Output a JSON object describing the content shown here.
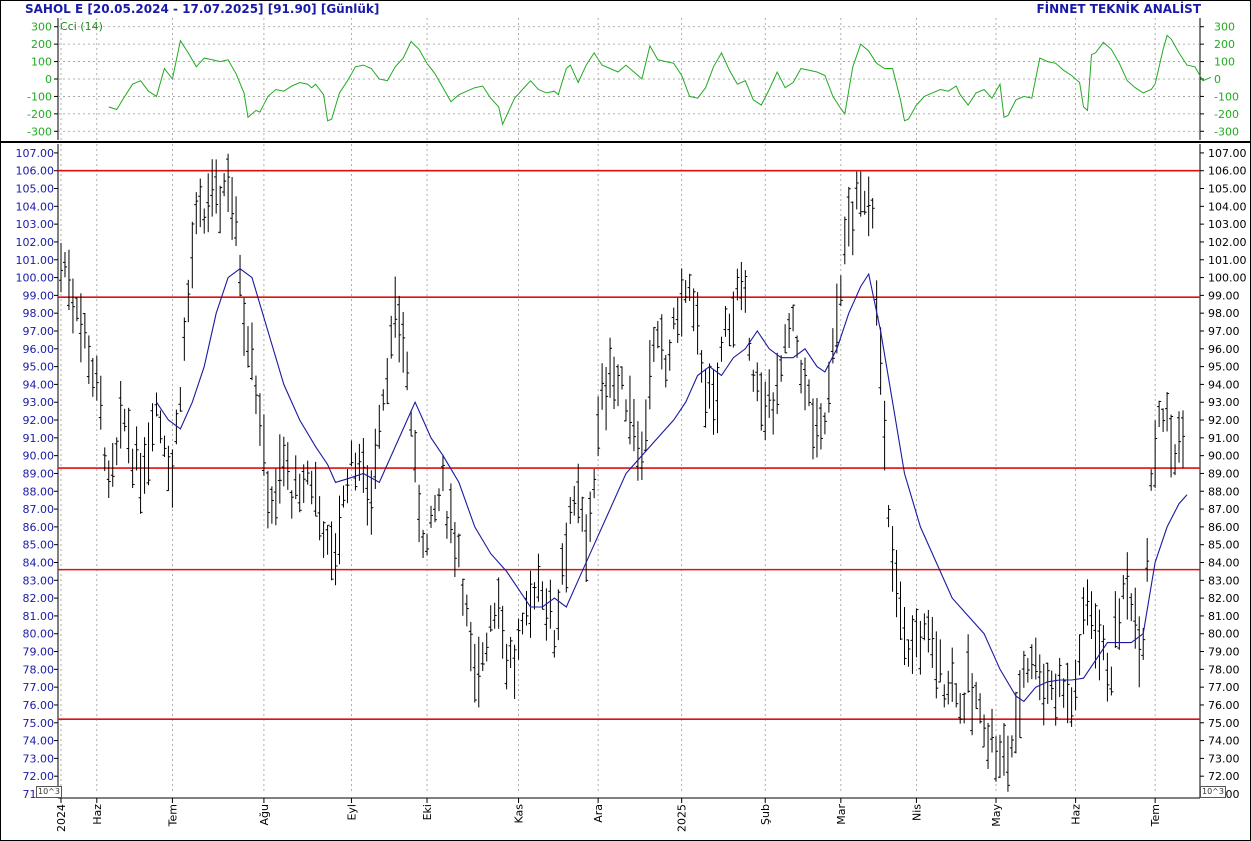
{
  "header": {
    "symbol": "SAHOL E",
    "range": "[20.05.2024 - 17.07.2025]",
    "last": "[91.90]",
    "period": "[Günlük]",
    "brand": "FİNNET TEKNİK ANALİST"
  },
  "exponent_label": "10^3",
  "colors": {
    "price": "#000000",
    "ma": "#1a1aa0",
    "hlines": "#dd1111",
    "cci": "#22aa22",
    "axis_text": "#1a1aa8",
    "grid": "#9a9a9a"
  },
  "cci_panel": {
    "label": "Cci (14)",
    "ylim": [
      -350,
      350
    ],
    "ticks": [
      300,
      200,
      100,
      0,
      -100,
      -200,
      -300
    ],
    "tick_labels": [
      "300",
      "200",
      "100",
      "0",
      "-100",
      "-200",
      "-300"
    ]
  },
  "chart_data": {
    "type": "line",
    "title": "SAHOL E",
    "xlabel": "",
    "ylabel": "",
    "ylim": [
      71,
      107.5
    ],
    "x_range": [
      0,
      282
    ],
    "y_ticks": [
      107,
      106,
      105,
      104,
      103,
      102,
      101,
      100,
      99,
      98,
      97,
      96,
      95,
      94,
      93,
      92,
      91,
      90,
      89,
      88,
      87,
      86,
      85,
      84,
      83,
      82,
      81,
      80,
      79,
      78,
      77,
      76,
      75,
      74,
      73,
      72,
      71
    ],
    "y_tick_labels": [
      "107.00",
      "106.00",
      "105.00",
      "104.00",
      "103.00",
      "102.00",
      "101.00",
      "100.00",
      "99.00",
      "98.00",
      "97.00",
      "96.00",
      "95.00",
      "94.00",
      "93.00",
      "92.00",
      "91.00",
      "90.00",
      "89.00",
      "88.00",
      "87.00",
      "86.00",
      "85.00",
      "84.00",
      "83.00",
      "82.00",
      "81.00",
      "80.00",
      "79.00",
      "78.00",
      "77.00",
      "76.00",
      "75.00",
      "74.00",
      "73.00",
      "72.00",
      "71.00"
    ],
    "x_ticks": [
      {
        "label": "2024",
        "x": 0
      },
      {
        "label": "Haz",
        "x": 9
      },
      {
        "label": "Tem",
        "x": 28
      },
      {
        "label": "Ağu",
        "x": 51
      },
      {
        "label": "Eyl",
        "x": 73
      },
      {
        "label": "Eki",
        "x": 92
      },
      {
        "label": "Kas",
        "x": 115
      },
      {
        "label": "Ara",
        "x": 135
      },
      {
        "label": "2025",
        "x": 156
      },
      {
        "label": "Şub",
        "x": 177
      },
      {
        "label": "Mar",
        "x": 196
      },
      {
        "label": "Nis",
        "x": 215
      },
      {
        "label": "May",
        "x": 235
      },
      {
        "label": "Haz",
        "x": 255
      },
      {
        "label": "Tem",
        "x": 275
      }
    ],
    "hlines": [
      106.0,
      98.9,
      89.3,
      83.6,
      75.2
    ],
    "price_anchors": [
      [
        0,
        101
      ],
      [
        2,
        100
      ],
      [
        4,
        98.5
      ],
      [
        6,
        97
      ],
      [
        8,
        95
      ],
      [
        10,
        93
      ],
      [
        12,
        88
      ],
      [
        14,
        90
      ],
      [
        16,
        92
      ],
      [
        18,
        90
      ],
      [
        20,
        88.5
      ],
      [
        22,
        91
      ],
      [
        24,
        93
      ],
      [
        26,
        91
      ],
      [
        28,
        89
      ],
      [
        30,
        94
      ],
      [
        32,
        99
      ],
      [
        34,
        103
      ],
      [
        36,
        103
      ],
      [
        38,
        105
      ],
      [
        40,
        104.5
      ],
      [
        42,
        106
      ],
      [
        44,
        103
      ],
      [
        46,
        98
      ],
      [
        48,
        96
      ],
      [
        50,
        92
      ],
      [
        52,
        88
      ],
      [
        54,
        87.5
      ],
      [
        56,
        90
      ],
      [
        58,
        88
      ],
      [
        60,
        87.5
      ],
      [
        62,
        89
      ],
      [
        64,
        88
      ],
      [
        66,
        86
      ],
      [
        68,
        84
      ],
      [
        70,
        86
      ],
      [
        72,
        89
      ],
      [
        74,
        90
      ],
      [
        76,
        89
      ],
      [
        78,
        88
      ],
      [
        80,
        92
      ],
      [
        82,
        95
      ],
      [
        84,
        97
      ],
      [
        86,
        97
      ],
      [
        88,
        92
      ],
      [
        90,
        87
      ],
      [
        92,
        85
      ],
      [
        94,
        87
      ],
      [
        96,
        88
      ],
      [
        98,
        86
      ],
      [
        100,
        85
      ],
      [
        102,
        81
      ],
      [
        104,
        77
      ],
      [
        106,
        79
      ],
      [
        108,
        81
      ],
      [
        110,
        82
      ],
      [
        112,
        79
      ],
      [
        114,
        78
      ],
      [
        116,
        80
      ],
      [
        118,
        82
      ],
      [
        120,
        83
      ],
      [
        122,
        82
      ],
      [
        124,
        80
      ],
      [
        126,
        84
      ],
      [
        128,
        87
      ],
      [
        130,
        87
      ],
      [
        132,
        85
      ],
      [
        134,
        89
      ],
      [
        136,
        93
      ],
      [
        138,
        95
      ],
      [
        140,
        94
      ],
      [
        142,
        93
      ],
      [
        144,
        92
      ],
      [
        146,
        90
      ],
      [
        148,
        95
      ],
      [
        150,
        96
      ],
      [
        152,
        95
      ],
      [
        154,
        97
      ],
      [
        156,
        99
      ],
      [
        158,
        99
      ],
      [
        160,
        97
      ],
      [
        162,
        94
      ],
      [
        164,
        92
      ],
      [
        166,
        96
      ],
      [
        168,
        98
      ],
      [
        170,
        99
      ],
      [
        172,
        98
      ],
      [
        174,
        95
      ],
      [
        176,
        92
      ],
      [
        178,
        93
      ],
      [
        180,
        94
      ],
      [
        182,
        96
      ],
      [
        184,
        97
      ],
      [
        186,
        95
      ],
      [
        188,
        93
      ],
      [
        190,
        91
      ],
      [
        192,
        92
      ],
      [
        194,
        96
      ],
      [
        196,
        100
      ],
      [
        198,
        103
      ],
      [
        200,
        104
      ],
      [
        202,
        104.5
      ],
      [
        204,
        104
      ],
      [
        206,
        95
      ],
      [
        208,
        86
      ],
      [
        210,
        83
      ],
      [
        212,
        80
      ],
      [
        214,
        79
      ],
      [
        216,
        80
      ],
      [
        218,
        80
      ],
      [
        220,
        79
      ],
      [
        222,
        77
      ],
      [
        224,
        78
      ],
      [
        226,
        76
      ],
      [
        228,
        77
      ],
      [
        230,
        76
      ],
      [
        232,
        75
      ],
      [
        234,
        74
      ],
      [
        236,
        73
      ],
      [
        238,
        73
      ],
      [
        240,
        75
      ],
      [
        242,
        78
      ],
      [
        244,
        79
      ],
      [
        246,
        78
      ],
      [
        248,
        77
      ],
      [
        250,
        77
      ],
      [
        252,
        77.5
      ],
      [
        254,
        76
      ],
      [
        256,
        79
      ],
      [
        258,
        82
      ],
      [
        260,
        81
      ],
      [
        262,
        79
      ],
      [
        264,
        78
      ],
      [
        266,
        81
      ],
      [
        268,
        83
      ],
      [
        270,
        81
      ],
      [
        272,
        80
      ],
      [
        274,
        89
      ],
      [
        276,
        93
      ],
      [
        278,
        92
      ],
      [
        280,
        90
      ],
      [
        282,
        91
      ]
    ],
    "ma_points": [
      [
        24,
        93
      ],
      [
        27,
        92
      ],
      [
        30,
        91.5
      ],
      [
        33,
        93
      ],
      [
        36,
        95
      ],
      [
        39,
        98
      ],
      [
        42,
        100
      ],
      [
        45,
        100.5
      ],
      [
        48,
        100
      ],
      [
        52,
        97
      ],
      [
        56,
        94
      ],
      [
        60,
        92
      ],
      [
        64,
        90.5
      ],
      [
        67,
        89.5
      ],
      [
        69,
        88.5
      ],
      [
        72,
        88.7
      ],
      [
        76,
        89
      ],
      [
        80,
        88.5
      ],
      [
        82,
        89.5
      ],
      [
        86,
        91.5
      ],
      [
        89,
        93
      ],
      [
        91,
        92
      ],
      [
        93,
        91
      ],
      [
        96,
        90
      ],
      [
        100,
        88.5
      ],
      [
        104,
        86
      ],
      [
        108,
        84.5
      ],
      [
        112,
        83.5
      ],
      [
        115,
        82.5
      ],
      [
        118,
        81.5
      ],
      [
        121,
        81.5
      ],
      [
        124,
        82
      ],
      [
        127,
        81.5
      ],
      [
        130,
        83
      ],
      [
        134,
        85
      ],
      [
        138,
        87
      ],
      [
        142,
        89
      ],
      [
        146,
        90
      ],
      [
        150,
        91
      ],
      [
        154,
        92
      ],
      [
        157,
        93
      ],
      [
        160,
        94.5
      ],
      [
        163,
        95
      ],
      [
        166,
        94.5
      ],
      [
        169,
        95.5
      ],
      [
        172,
        96
      ],
      [
        175,
        97
      ],
      [
        178,
        96
      ],
      [
        181,
        95.5
      ],
      [
        184,
        95.5
      ],
      [
        187,
        96
      ],
      [
        190,
        95
      ],
      [
        192,
        94.7
      ],
      [
        195,
        96
      ],
      [
        198,
        98
      ],
      [
        201,
        99.5
      ],
      [
        203,
        100.2
      ],
      [
        206,
        97
      ],
      [
        209,
        93
      ],
      [
        212,
        89
      ],
      [
        216,
        86
      ],
      [
        220,
        84
      ],
      [
        224,
        82
      ],
      [
        228,
        81
      ],
      [
        232,
        80
      ],
      [
        236,
        78
      ],
      [
        240,
        76.5
      ],
      [
        242,
        76.2
      ],
      [
        245,
        77
      ],
      [
        248,
        77.3
      ],
      [
        251,
        77.4
      ],
      [
        254,
        77.4
      ],
      [
        257,
        77.5
      ],
      [
        260,
        78.5
      ],
      [
        263,
        79.5
      ],
      [
        266,
        79.5
      ],
      [
        269,
        79.5
      ],
      [
        272,
        80
      ],
      [
        275,
        84
      ],
      [
        278,
        86
      ],
      [
        281,
        87.3
      ],
      [
        283,
        87.8
      ]
    ],
    "cci_anchors": [
      [
        12,
        -160
      ],
      [
        14,
        -175
      ],
      [
        16,
        -100
      ],
      [
        18,
        -30
      ],
      [
        20,
        -10
      ],
      [
        22,
        -70
      ],
      [
        24,
        -100
      ],
      [
        26,
        60
      ],
      [
        28,
        0
      ],
      [
        30,
        220
      ],
      [
        32,
        150
      ],
      [
        34,
        70
      ],
      [
        36,
        120
      ],
      [
        38,
        110
      ],
      [
        40,
        100
      ],
      [
        42,
        110
      ],
      [
        44,
        30
      ],
      [
        46,
        -80
      ],
      [
        47,
        -220
      ],
      [
        49,
        -180
      ],
      [
        50,
        -190
      ],
      [
        52,
        -100
      ],
      [
        54,
        -60
      ],
      [
        56,
        -70
      ],
      [
        58,
        -40
      ],
      [
        60,
        -20
      ],
      [
        62,
        -30
      ],
      [
        63,
        -50
      ],
      [
        64,
        -30
      ],
      [
        66,
        -90
      ],
      [
        67,
        -240
      ],
      [
        68,
        -230
      ],
      [
        70,
        -80
      ],
      [
        72,
        -10
      ],
      [
        74,
        70
      ],
      [
        76,
        80
      ],
      [
        78,
        60
      ],
      [
        80,
        0
      ],
      [
        82,
        -10
      ],
      [
        84,
        70
      ],
      [
        86,
        120
      ],
      [
        88,
        215
      ],
      [
        90,
        170
      ],
      [
        92,
        90
      ],
      [
        94,
        30
      ],
      [
        96,
        -50
      ],
      [
        98,
        -130
      ],
      [
        100,
        -90
      ],
      [
        102,
        -70
      ],
      [
        104,
        -50
      ],
      [
        106,
        -40
      ],
      [
        108,
        -110
      ],
      [
        110,
        -160
      ],
      [
        111,
        -260
      ],
      [
        112,
        -210
      ],
      [
        114,
        -110
      ],
      [
        116,
        -60
      ],
      [
        118,
        -10
      ],
      [
        120,
        -60
      ],
      [
        122,
        -80
      ],
      [
        124,
        -70
      ],
      [
        125,
        -90
      ],
      [
        127,
        60
      ],
      [
        128,
        80
      ],
      [
        130,
        -20
      ],
      [
        132,
        80
      ],
      [
        134,
        150
      ],
      [
        136,
        80
      ],
      [
        138,
        60
      ],
      [
        140,
        40
      ],
      [
        142,
        80
      ],
      [
        144,
        40
      ],
      [
        146,
        0
      ],
      [
        148,
        190
      ],
      [
        150,
        110
      ],
      [
        152,
        100
      ],
      [
        154,
        90
      ],
      [
        156,
        20
      ],
      [
        158,
        -100
      ],
      [
        160,
        -110
      ],
      [
        162,
        -50
      ],
      [
        164,
        70
      ],
      [
        166,
        150
      ],
      [
        168,
        50
      ],
      [
        170,
        -30
      ],
      [
        172,
        -10
      ],
      [
        174,
        -120
      ],
      [
        176,
        -150
      ],
      [
        178,
        -60
      ],
      [
        180,
        40
      ],
      [
        182,
        -50
      ],
      [
        184,
        -20
      ],
      [
        186,
        60
      ],
      [
        188,
        50
      ],
      [
        190,
        40
      ],
      [
        192,
        20
      ],
      [
        194,
        -100
      ],
      [
        196,
        -170
      ],
      [
        197,
        -200
      ],
      [
        199,
        70
      ],
      [
        201,
        200
      ],
      [
        203,
        160
      ],
      [
        205,
        90
      ],
      [
        207,
        60
      ],
      [
        209,
        60
      ],
      [
        211,
        -120
      ],
      [
        212,
        -240
      ],
      [
        213,
        -230
      ],
      [
        215,
        -150
      ],
      [
        217,
        -100
      ],
      [
        219,
        -80
      ],
      [
        221,
        -60
      ],
      [
        223,
        -70
      ],
      [
        225,
        -40
      ],
      [
        226,
        -90
      ],
      [
        228,
        -150
      ],
      [
        230,
        -80
      ],
      [
        232,
        -60
      ],
      [
        234,
        -110
      ],
      [
        236,
        -30
      ],
      [
        237,
        -220
      ],
      [
        238,
        -210
      ],
      [
        240,
        -120
      ],
      [
        242,
        -100
      ],
      [
        244,
        -110
      ],
      [
        246,
        120
      ],
      [
        248,
        100
      ],
      [
        250,
        90
      ],
      [
        252,
        50
      ],
      [
        254,
        20
      ],
      [
        256,
        -20
      ],
      [
        257,
        -160
      ],
      [
        258,
        -180
      ],
      [
        259,
        140
      ],
      [
        260,
        150
      ],
      [
        262,
        210
      ],
      [
        264,
        170
      ],
      [
        266,
        90
      ],
      [
        268,
        -10
      ],
      [
        270,
        -50
      ],
      [
        272,
        -80
      ],
      [
        274,
        -60
      ],
      [
        275,
        -30
      ],
      [
        277,
        170
      ],
      [
        278,
        250
      ],
      [
        279,
        230
      ],
      [
        281,
        150
      ],
      [
        283,
        80
      ],
      [
        285,
        70
      ],
      [
        287,
        -10
      ],
      [
        289,
        10
      ]
    ]
  }
}
